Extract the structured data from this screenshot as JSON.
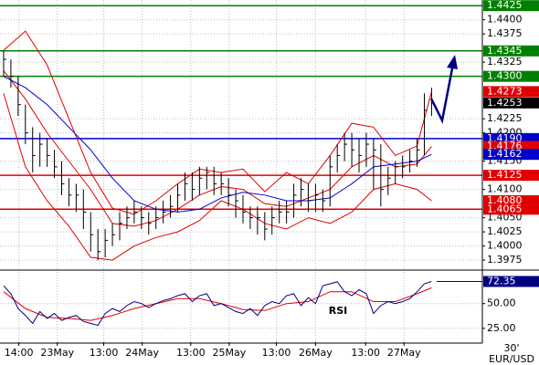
{
  "chart_data": {
    "type": "ohlc",
    "symbol": "EUR/USD",
    "timeframe": "30'",
    "grid": true,
    "xlim": [
      -0.5,
      66
    ],
    "xticks": [
      {
        "value": 2.1,
        "label": "14:00"
      },
      {
        "value": 7.4,
        "label": "23May"
      },
      {
        "value": 13.8,
        "label": "13:00"
      },
      {
        "value": 19.1,
        "label": "24May"
      },
      {
        "value": 25.8,
        "label": "13:00"
      },
      {
        "value": 31.1,
        "label": "25May"
      },
      {
        "value": 37.6,
        "label": "13:00"
      },
      {
        "value": 43,
        "label": "26May"
      },
      {
        "value": 49.9,
        "label": "13:00"
      },
      {
        "value": 55.2,
        "label": "27May"
      }
    ],
    "ylim": [
      1.3959,
      1.4435
    ],
    "yticks": [
      {
        "value": 1.44,
        "label": "1.4400"
      },
      1.4375,
      1.4325,
      1.4225,
      {
        "value": 1.42,
        "label": "1.4200"
      },
      {
        "value": 1.415,
        "label": "1.4150"
      },
      {
        "value": 1.41,
        "label": "1.4100"
      },
      {
        "value": 1.405,
        "label": "1.4050"
      },
      1.4025,
      {
        "value": 1.4,
        "label": "1.4000"
      },
      1.3975
    ],
    "bars": {
      "color": "#000000",
      "high": [
        1.4345,
        1.433,
        1.43,
        1.425,
        1.421,
        1.42,
        1.419,
        1.417,
        1.415,
        1.412,
        1.411,
        1.41,
        1.406,
        1.403,
        1.403,
        1.404,
        1.406,
        1.407,
        1.408,
        1.407,
        1.406,
        1.407,
        1.408,
        1.409,
        1.411,
        1.413,
        1.413,
        1.414,
        1.414,
        1.414,
        1.413,
        1.412,
        1.41,
        1.409,
        1.407,
        1.407,
        1.406,
        1.407,
        1.408,
        1.408,
        1.411,
        1.412,
        1.411,
        1.411,
        1.41,
        1.416,
        1.418,
        1.42,
        1.42,
        1.419,
        1.42,
        1.419,
        1.418,
        1.414,
        1.415,
        1.416,
        1.417,
        1.419,
        1.427,
        1.428
      ],
      "low": [
        1.43,
        1.428,
        1.423,
        1.418,
        1.413,
        1.414,
        1.414,
        1.412,
        1.409,
        1.407,
        1.406,
        1.403,
        1.399,
        1.3975,
        1.398,
        1.4,
        1.401,
        1.403,
        1.404,
        1.403,
        1.402,
        1.403,
        1.404,
        1.405,
        1.406,
        1.408,
        1.408,
        1.409,
        1.41,
        1.409,
        1.409,
        1.407,
        1.405,
        1.404,
        1.403,
        1.402,
        1.401,
        1.402,
        1.404,
        1.404,
        1.405,
        1.407,
        1.406,
        1.406,
        1.406,
        1.407,
        1.413,
        1.415,
        1.414,
        1.413,
        1.414,
        1.41,
        1.407,
        1.409,
        1.411,
        1.412,
        1.413,
        1.414,
        1.416,
        1.423
      ],
      "close": [
        1.433,
        1.43,
        1.425,
        1.42,
        1.416,
        1.418,
        1.416,
        1.414,
        1.411,
        1.409,
        1.409,
        1.406,
        1.402,
        1.399,
        1.401,
        1.402,
        1.404,
        1.405,
        1.406,
        1.405,
        1.404,
        1.405,
        1.406,
        1.407,
        1.409,
        1.411,
        1.41,
        1.412,
        1.413,
        1.411,
        1.411,
        1.409,
        1.408,
        1.406,
        1.405,
        1.405,
        1.403,
        1.405,
        1.406,
        1.406,
        1.409,
        1.41,
        1.408,
        1.409,
        1.408,
        1.414,
        1.416,
        1.418,
        1.417,
        1.416,
        1.418,
        1.417,
        1.41,
        1.412,
        1.414,
        1.414,
        1.415,
        1.417,
        1.424,
        1.4253
      ]
    },
    "indicators": {
      "x": [
        0,
        3,
        6,
        9,
        12,
        15,
        18,
        21,
        24,
        27,
        30,
        33,
        36,
        39,
        42,
        45,
        48,
        51,
        54,
        57,
        59
      ],
      "series": [
        {
          "color": "#e00000",
          "values": [
            1.4346,
            1.438,
            1.432,
            1.4225,
            1.413,
            1.4067,
            1.4056,
            1.408,
            1.411,
            1.4136,
            1.413,
            1.4136,
            1.4096,
            1.413,
            1.411,
            1.416,
            1.4217,
            1.421,
            1.416,
            1.4177,
            1.4273
          ]
        },
        {
          "color": "#e00000",
          "values": [
            1.431,
            1.426,
            1.42,
            1.415,
            1.41,
            1.404,
            1.4035,
            1.4045,
            1.4065,
            1.409,
            1.4105,
            1.41,
            1.4075,
            1.407,
            1.4085,
            1.41,
            1.414,
            1.416,
            1.414,
            1.4145,
            1.4176
          ]
        },
        {
          "color": "#e00000",
          "values": [
            1.427,
            1.414,
            1.408,
            1.4035,
            1.398,
            1.3975,
            1.4,
            1.4015,
            1.4025,
            1.4045,
            1.408,
            1.4065,
            1.404,
            1.403,
            1.405,
            1.404,
            1.406,
            1.41,
            1.411,
            1.41,
            1.408
          ]
        },
        {
          "color": "#0000cc",
          "values": [
            1.43,
            1.428,
            1.425,
            1.421,
            1.417,
            1.412,
            1.408,
            1.4065,
            1.406,
            1.4065,
            1.4085,
            1.4095,
            1.409,
            1.408,
            1.408,
            1.4085,
            1.411,
            1.414,
            1.4145,
            1.415,
            1.4162
          ]
        }
      ]
    },
    "levels": [
      {
        "value": 1.4425,
        "label": "1.4425",
        "color": "#008000",
        "line": true
      },
      {
        "value": 1.4345,
        "label": "1.4345",
        "color": "#008000",
        "line": true
      },
      {
        "value": 1.43,
        "label": "1.4300",
        "color": "#008000",
        "line": true
      },
      {
        "value": 1.4273,
        "label": "1.4273",
        "color": "#e00000",
        "line": false
      },
      {
        "value": 1.4253,
        "label": "1.4253",
        "color": "#000000",
        "line": false
      },
      {
        "value": 1.419,
        "label": "1.4190",
        "color": "#0000cc",
        "line": true
      },
      {
        "value": 1.4176,
        "label": "1.4176",
        "color": "#e00000",
        "line": false
      },
      {
        "value": 1.4162,
        "label": "1.4162",
        "color": "#0000cc",
        "line": false
      },
      {
        "value": 1.4125,
        "label": "1.4125",
        "color": "#e00000",
        "line": true
      },
      {
        "value": 1.408,
        "label": "1.4080",
        "color": "#e00000",
        "line": false
      },
      {
        "value": 1.4065,
        "label": "1.4065",
        "color": "#e00000",
        "line": true
      }
    ],
    "rsi": {
      "title": "RSI",
      "ylim": [
        11,
        82
      ],
      "yticks": [
        {
          "value": 50,
          "label": "50.00"
        },
        {
          "value": 25,
          "label": "25.00"
        }
      ],
      "color": "#000080",
      "values": [
        68,
        60,
        45,
        38,
        30,
        42,
        35,
        40,
        33,
        36,
        38,
        32,
        30,
        28,
        40,
        45,
        42,
        48,
        52,
        50,
        46,
        50,
        53,
        55,
        58,
        60,
        52,
        58,
        60,
        48,
        50,
        46,
        42,
        40,
        45,
        38,
        48,
        52,
        50,
        58,
        60,
        48,
        56,
        50,
        68,
        70,
        72,
        62,
        58,
        64,
        60,
        40,
        48,
        52,
        50,
        52,
        55,
        62,
        70,
        72.35
      ],
      "signal": {
        "color": "#e00000",
        "values": [
          62,
          45,
          36,
          35,
          33,
          38,
          45,
          50,
          55,
          55,
          50,
          44,
          43,
          50,
          52,
          62,
          62,
          52,
          52,
          60,
          66
        ]
      },
      "last": {
        "value": 72.35,
        "color": "#000080"
      }
    }
  }
}
